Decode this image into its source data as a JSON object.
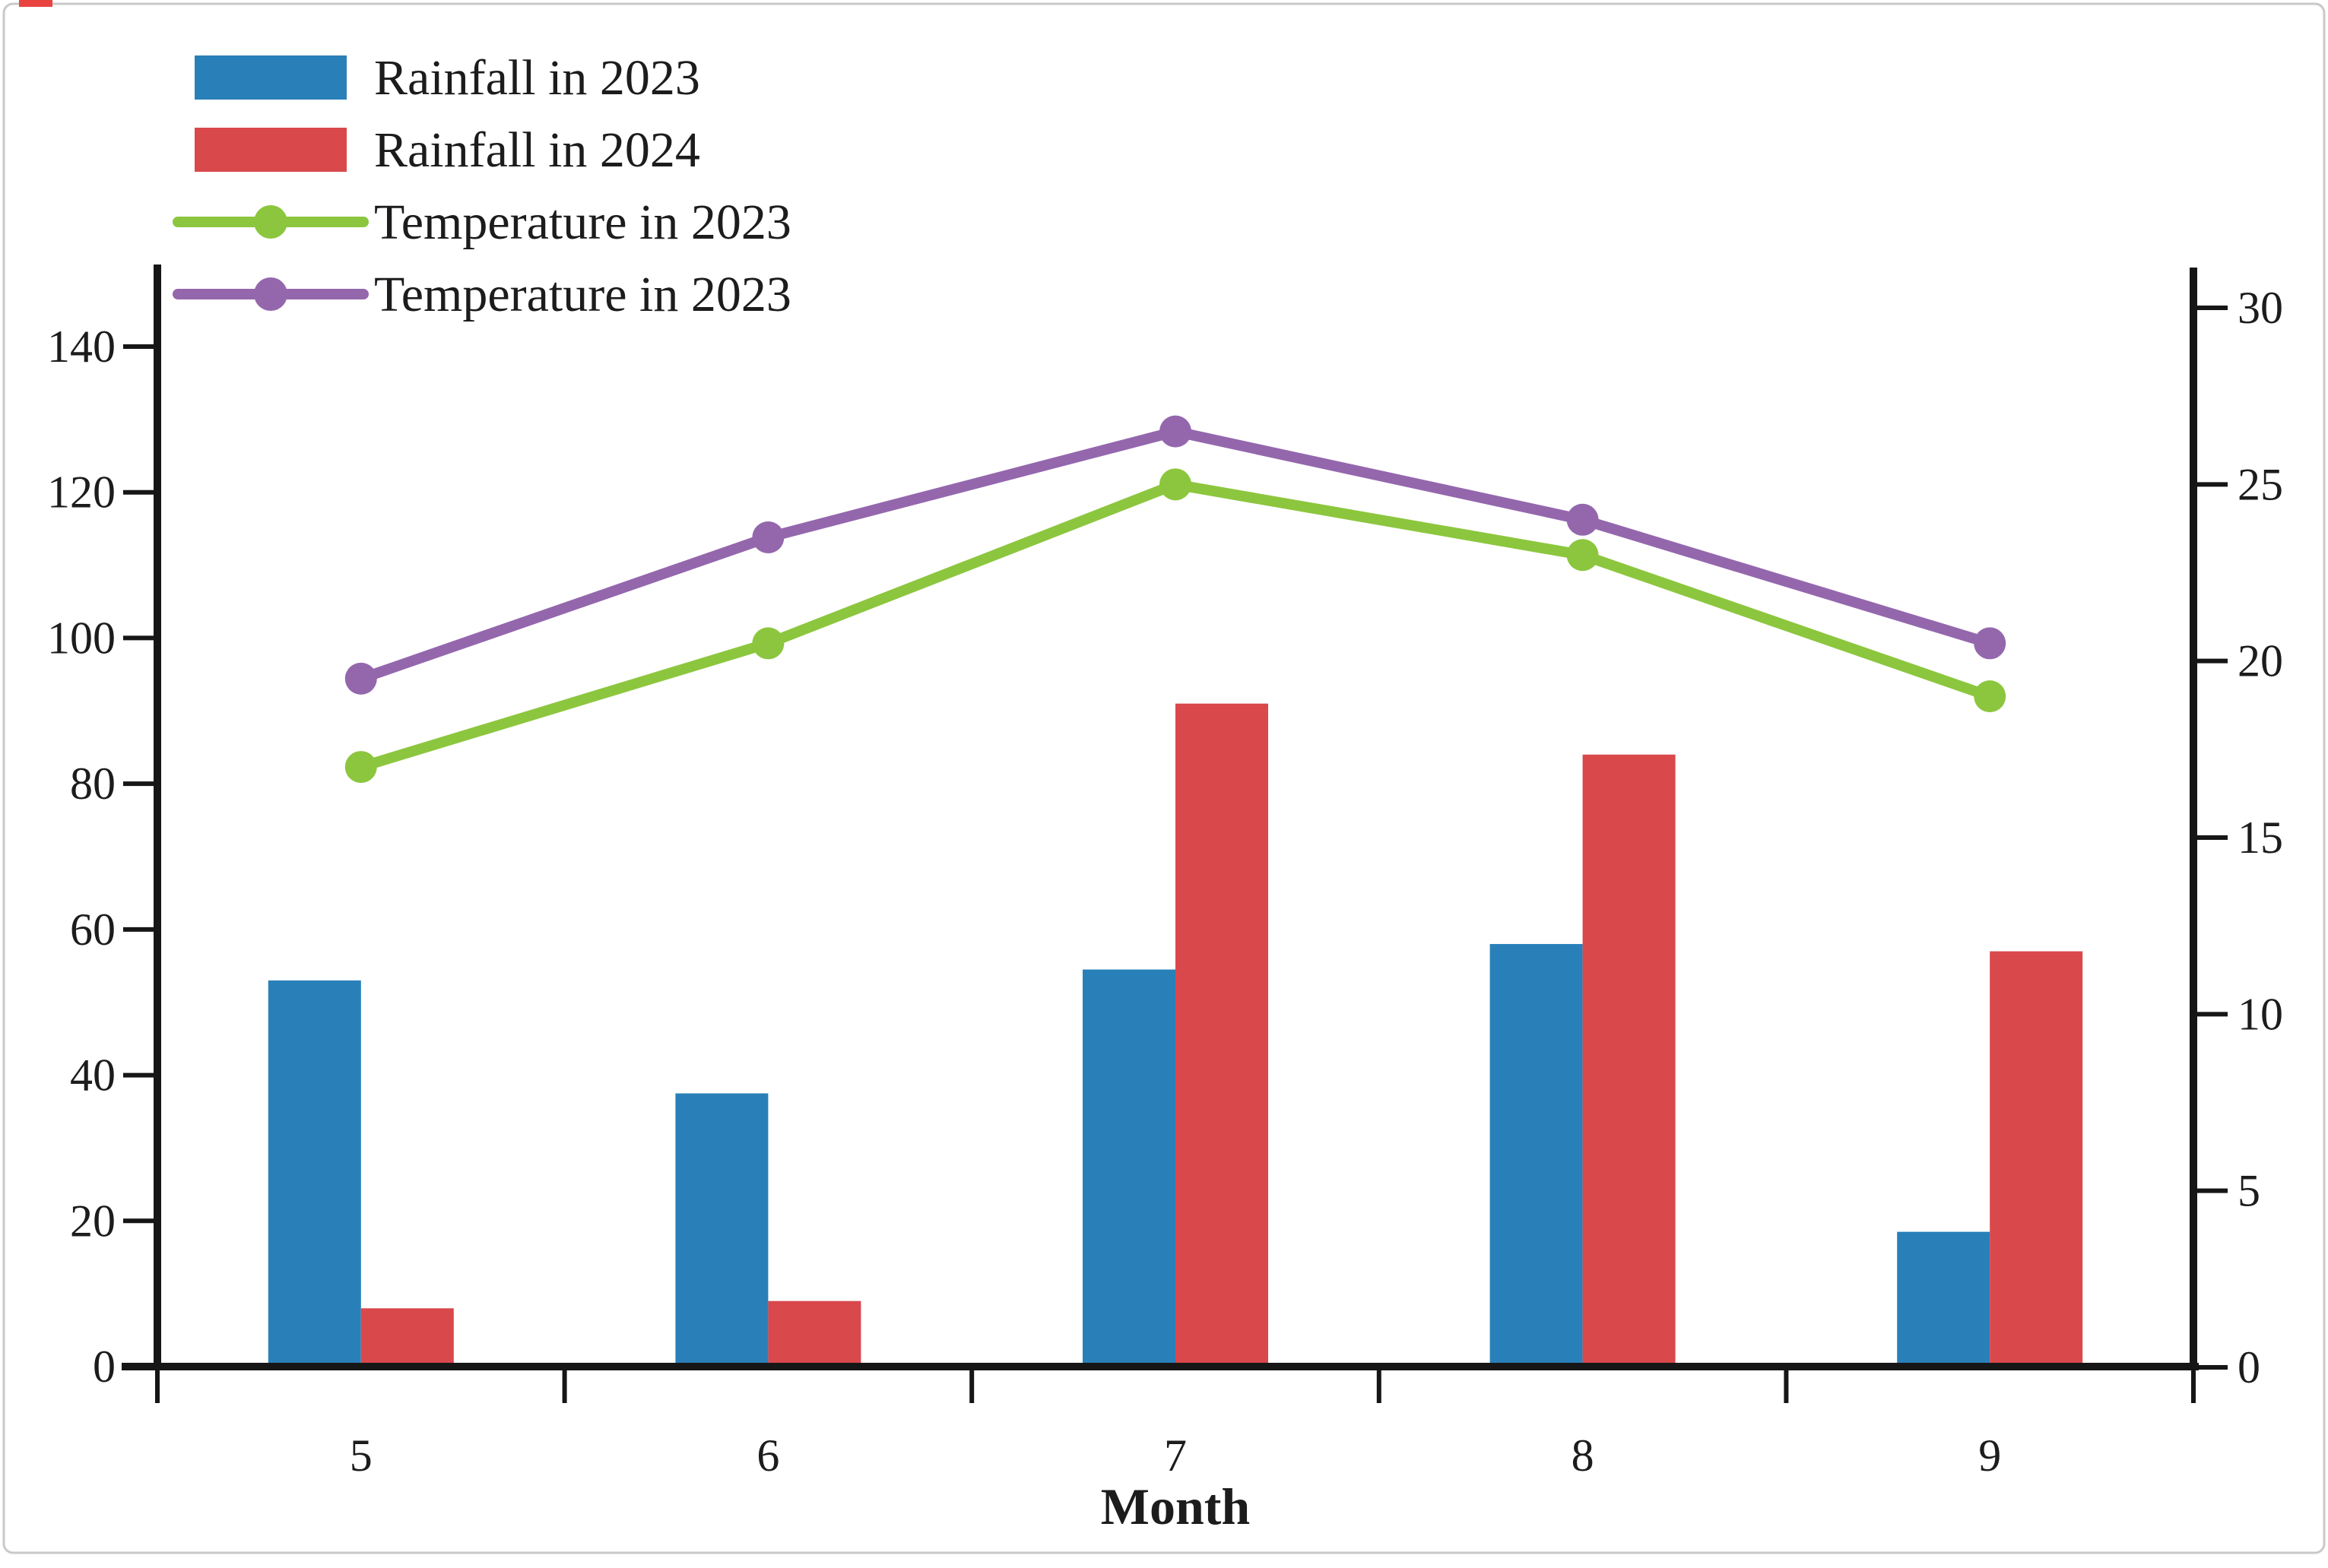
{
  "figure": {
    "background": "#ffffff",
    "border_color": "#c9c9c9",
    "axis_color": "#161616",
    "text_color": "#1c1c1c"
  },
  "artifact": {
    "name": "red-mark-top-left",
    "color": "#e8433f"
  },
  "xlabel": "Month",
  "legend": {
    "position": "top-left",
    "items": [
      {
        "label": "Rainfall in 2023",
        "type": "bar",
        "color": "#2980b9"
      },
      {
        "label": "Rainfall in 2024",
        "type": "bar",
        "color": "#d9484b"
      },
      {
        "label": "Temperature in 2023",
        "type": "line",
        "color": "#8cc63e"
      },
      {
        "label": "Temperature in 2023",
        "type": "line",
        "color": "#9467ad"
      }
    ]
  },
  "chart_data": {
    "type": "bar+line combo (dual axis)",
    "categories": [
      "5",
      "6",
      "7",
      "8",
      "9"
    ],
    "xlabel": "Month",
    "left_axis": {
      "label": "",
      "min": 0,
      "max": 140,
      "tick_step": 20,
      "ticks": [
        0,
        20,
        40,
        60,
        80,
        100,
        120,
        140
      ]
    },
    "right_axis": {
      "label": "",
      "min": 0,
      "max": 30,
      "tick_step": 5,
      "ticks": [
        0,
        5,
        10,
        15,
        20,
        25,
        30
      ]
    },
    "grid": false,
    "legend_position": "upper left, no frame",
    "series": [
      {
        "name": "Rainfall in 2023",
        "type": "bar",
        "axis": "left",
        "color": "#2980b9",
        "values": [
          53,
          37.5,
          54.5,
          58,
          18.5
        ]
      },
      {
        "name": "Rainfall in 2024",
        "type": "bar",
        "axis": "left",
        "color": "#d9484b",
        "values": [
          8,
          9,
          91,
          84,
          57
        ]
      },
      {
        "name": "Temperature in 2023",
        "type": "line",
        "axis": "right",
        "color": "#8cc63e",
        "values": [
          17,
          20.5,
          25,
          23,
          19
        ]
      },
      {
        "name": "Temperature in 2023",
        "type": "line",
        "axis": "right",
        "color": "#9467ad",
        "values": [
          19.5,
          23.5,
          26.5,
          24,
          20.5
        ]
      }
    ]
  }
}
